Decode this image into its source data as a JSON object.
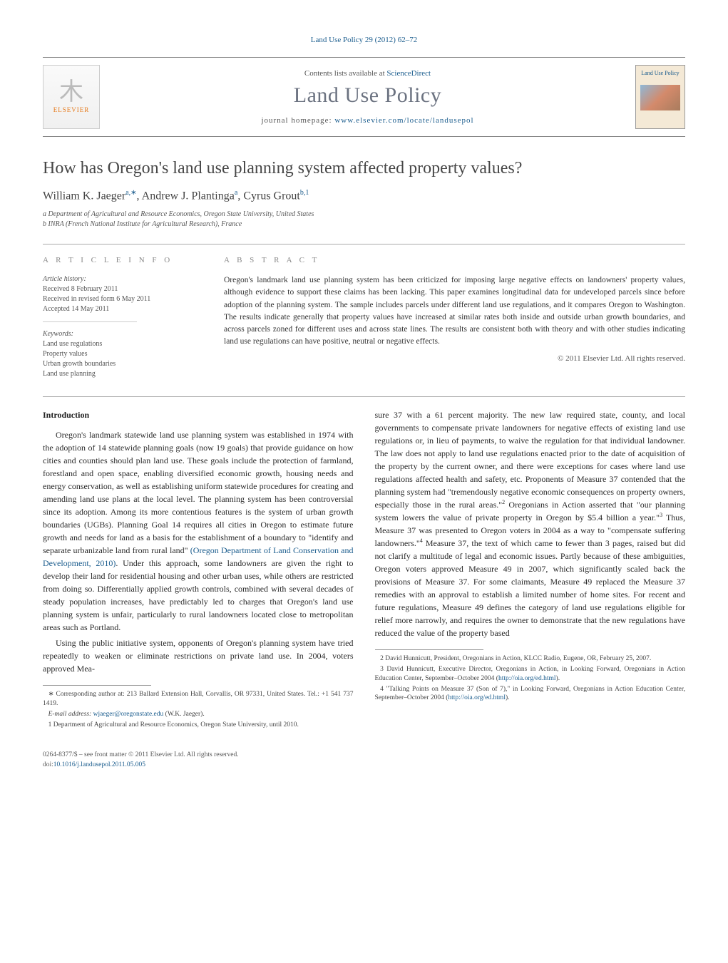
{
  "journal": {
    "citation": "Land Use Policy 29 (2012) 62–72",
    "contents_prefix": "Contents lists available at ",
    "contents_link": "ScienceDirect",
    "name": "Land Use Policy",
    "homepage_prefix": "journal homepage: ",
    "homepage_url": "www.elsevier.com/locate/landusepol",
    "elsevier_label": "ELSEVIER",
    "cover_label": "Land Use Policy"
  },
  "article": {
    "title": "How has Oregon's land use planning system affected property values?",
    "authors_html": "William K. Jaeger",
    "author1_sup": "a,∗",
    "author2": ", Andrew J. Plantinga",
    "author2_sup": "a",
    "author3": ", Cyrus Grout",
    "author3_sup": "b,1",
    "affiliations": {
      "a": "a Department of Agricultural and Resource Economics, Oregon State University, United States",
      "b": "b INRA (French National Institute for Agricultural Research), France"
    }
  },
  "info": {
    "heading": "a r t i c l e   i n f o",
    "history_label": "Article history:",
    "received": "Received 8 February 2011",
    "revised": "Received in revised form 6 May 2011",
    "accepted": "Accepted 14 May 2011",
    "keywords_label": "Keywords:",
    "keywords": [
      "Land use regulations",
      "Property values",
      "Urban growth boundaries",
      "Land use planning"
    ]
  },
  "abstract": {
    "heading": "a b s t r a c t",
    "text": "Oregon's landmark land use planning system has been criticized for imposing large negative effects on landowners' property values, although evidence to support these claims has been lacking. This paper examines longitudinal data for undeveloped parcels since before adoption of the planning system. The sample includes parcels under different land use regulations, and it compares Oregon to Washington. The results indicate generally that property values have increased at similar rates both inside and outside urban growth boundaries, and across parcels zoned for different uses and across state lines. The results are consistent both with theory and with other studies indicating land use regulations can have positive, neutral or negative effects.",
    "copyright": "© 2011 Elsevier Ltd. All rights reserved."
  },
  "body": {
    "section_heading": "Introduction",
    "p1": "Oregon's landmark statewide land use planning system was established in 1974 with the adoption of 14 statewide planning goals (now 19 goals) that provide guidance on how cities and counties should plan land use. These goals include the protection of farmland, forestland and open space, enabling diversified economic growth, housing needs and energy conservation, as well as establishing uniform statewide procedures for creating and amending land use plans at the local level. The planning system has been controversial since its adoption. Among its more contentious features is the system of urban growth boundaries (UGBs). Planning Goal 14 requires all cities in Oregon to estimate future growth and needs for land as a basis for the establishment of a boundary to \"identify and separate urbanizable land from rural land\" ",
    "p1_link": "(Oregon Department of Land Conservation and Development, 2010)",
    "p1_tail": ". Under this approach, some landowners are given the right to develop their land for residential housing and other urban uses, while others are restricted from doing so. Differentially applied growth controls, combined with several decades of steady population increases, have predictably led to charges that Oregon's land use planning system is unfair, particularly to rural landowners located close to metropolitan areas such as Portland.",
    "p2": "Using the public initiative system, opponents of Oregon's planning system have tried repeatedly to weaken or eliminate restrictions on private land use. In 2004, voters approved Mea-",
    "p3": "sure 37 with a 61 percent majority. The new law required state, county, and local governments to compensate private landowners for negative effects of existing land use regulations or, in lieu of payments, to waive the regulation for that individual landowner. The law does not apply to land use regulations enacted prior to the date of acquisition of the property by the current owner, and there were exceptions for cases where land use regulations affected health and safety, etc. Proponents of Measure 37 contended that the planning system had \"tremendously negative economic consequences on property owners, especially those in the rural areas.\"",
    "p3_sup2": "2",
    "p3_mid": " Oregonians in Action asserted that \"our planning system lowers the value of private property in Oregon by $5.4 billion a year.\"",
    "p3_sup3": "3",
    "p3_mid2": " Thus, Measure 37 was presented to Oregon voters in 2004 as a way to \"compensate suffering landowners.\"",
    "p3_sup4": "4",
    "p3_tail": " Measure 37, the text of which came to fewer than 3 pages, raised but did not clarify a multitude of legal and economic issues. Partly because of these ambiguities, Oregon voters approved Measure 49 in 2007, which significantly scaled back the provisions of Measure 37. For some claimants, Measure 49 replaced the Measure 37 remedies with an approval to establish a limited number of home sites. For recent and future regulations, Measure 49 defines the category of land use regulations eligible for relief more narrowly, and requires the owner to demonstrate that the new regulations have reduced the value of the property based"
  },
  "left_footnotes": {
    "star": "∗ Corresponding author at: 213 Ballard Extension Hall, Corvallis, OR 97331, United States. Tel.: +1 541 737 1419.",
    "email_label": "E-mail address: ",
    "email": "wjaeger@oregonstate.edu",
    "email_tail": " (W.K. Jaeger).",
    "one": "1 Department of Agricultural and Resource Economics, Oregon State University, until 2010."
  },
  "right_footnotes": {
    "two": "2 David Hunnicutt, President, Oregonians in Action, KLCC Radio, Eugene, OR, February 25, 2007.",
    "three_pre": "3 David Hunnicutt, Executive Director, Oregonians in Action, in Looking Forward, Oregonians in Action Education Center, September–October 2004 (",
    "three_link": "http://oia.org/ed.html",
    "three_tail": ").",
    "four_pre": "4 \"Talking Points on Measure 37 (Son of 7),\" in Looking Forward, Oregonians in Action Education Center, September–October 2004 (",
    "four_link": "http://oia.org/ed.html",
    "four_tail": ")."
  },
  "bottom": {
    "line1": "0264-8377/$ – see front matter © 2011 Elsevier Ltd. All rights reserved.",
    "doi_label": "doi:",
    "doi": "10.1016/j.landusepol.2011.05.005"
  }
}
